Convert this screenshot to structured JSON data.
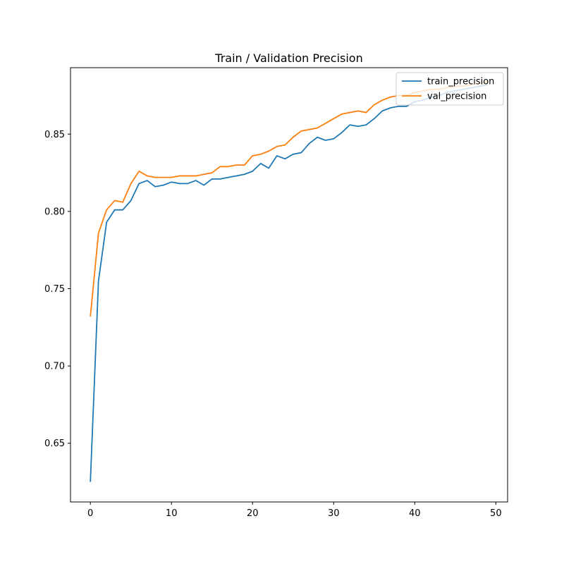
{
  "chart_data": {
    "type": "line",
    "title": "Train / Validation Precision",
    "xlabel": "",
    "ylabel": "",
    "xlim": [
      -2.45,
      51.45
    ],
    "ylim": [
      0.612,
      0.893
    ],
    "xticks": [
      0,
      10,
      20,
      30,
      40,
      50
    ],
    "xtick_labels": [
      "0",
      "10",
      "20",
      "30",
      "40",
      "50"
    ],
    "yticks": [
      0.65,
      0.7,
      0.75,
      0.8,
      0.85
    ],
    "ytick_labels": [
      "0.65",
      "0.70",
      "0.75",
      "0.80",
      "0.85"
    ],
    "grid": false,
    "legend_position": "top-right",
    "x": [
      0,
      1,
      2,
      3,
      4,
      5,
      6,
      7,
      8,
      9,
      10,
      11,
      12,
      13,
      14,
      15,
      16,
      17,
      18,
      19,
      20,
      21,
      22,
      23,
      24,
      25,
      26,
      27,
      28,
      29,
      30,
      31,
      32,
      33,
      34,
      35,
      36,
      37,
      38,
      39,
      40,
      41,
      42,
      43,
      44,
      45,
      46,
      47,
      48,
      49
    ],
    "series": [
      {
        "name": "train_precision",
        "color": "#1f77b4",
        "values": [
          0.625,
          0.755,
          0.793,
          0.801,
          0.801,
          0.807,
          0.818,
          0.82,
          0.816,
          0.817,
          0.819,
          0.818,
          0.818,
          0.82,
          0.817,
          0.821,
          0.821,
          0.822,
          0.823,
          0.824,
          0.826,
          0.831,
          0.828,
          0.836,
          0.834,
          0.837,
          0.838,
          0.844,
          0.848,
          0.846,
          0.847,
          0.851,
          0.856,
          0.855,
          0.856,
          0.86,
          0.865,
          0.867,
          0.868,
          0.868,
          0.871,
          0.872,
          0.874,
          0.875,
          0.877,
          0.878,
          0.879,
          0.88,
          0.881,
          0.882
        ]
      },
      {
        "name": "val_precision",
        "color": "#ff7f0e",
        "values": [
          0.732,
          0.786,
          0.801,
          0.807,
          0.806,
          0.818,
          0.826,
          0.823,
          0.822,
          0.822,
          0.822,
          0.823,
          0.823,
          0.823,
          0.824,
          0.825,
          0.829,
          0.829,
          0.83,
          0.83,
          0.836,
          0.837,
          0.839,
          0.842,
          0.843,
          0.848,
          0.852,
          0.853,
          0.854,
          0.857,
          0.86,
          0.863,
          0.864,
          0.865,
          0.864,
          0.869,
          0.872,
          0.874,
          0.875,
          0.875,
          0.877,
          0.878,
          0.879,
          0.879,
          0.88,
          0.881,
          0.881,
          0.882,
          0.883,
          0.884
        ]
      }
    ]
  }
}
